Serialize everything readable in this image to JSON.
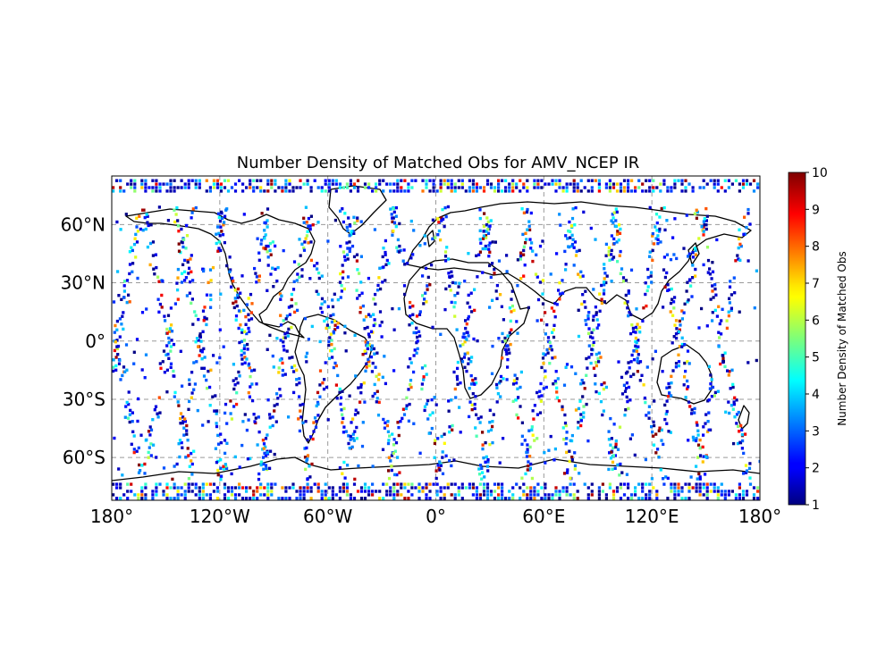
{
  "chart_data": {
    "type": "heatmap",
    "title": "Number Density of Matched Obs for AMV_NCEP IR",
    "projection": "PlateCarree",
    "xlim": [
      -180,
      180
    ],
    "ylim": [
      -82,
      85
    ],
    "x_ticks": [
      {
        "value": -180,
        "label": "180°"
      },
      {
        "value": -120,
        "label": "120°W"
      },
      {
        "value": -60,
        "label": "60°W"
      },
      {
        "value": 0,
        "label": "0°"
      },
      {
        "value": 60,
        "label": "60°E"
      },
      {
        "value": 120,
        "label": "120°E"
      },
      {
        "value": 180,
        "label": "180°"
      }
    ],
    "y_ticks": [
      {
        "value": 60,
        "label": "60°N"
      },
      {
        "value": 30,
        "label": "30°N"
      },
      {
        "value": 0,
        "label": "0°"
      },
      {
        "value": -30,
        "label": "30°S"
      },
      {
        "value": -60,
        "label": "60°S"
      }
    ],
    "grid": true,
    "coastlines": true,
    "colorbar": {
      "label": "Number Density of Matched Obs",
      "range": [
        1,
        10
      ],
      "ticks": [
        "1",
        "2",
        "3",
        "4",
        "5",
        "6",
        "7",
        "8",
        "9",
        "10"
      ],
      "colormap": "jet",
      "position": "right"
    },
    "orbit_swaths": {
      "description": "satellite swath tracks of matched observations",
      "swath_lons_deg": [
        -178,
        -150,
        -132,
        -108,
        -84,
        -60,
        -38,
        -12,
        14,
        38,
        62,
        86,
        110,
        134,
        158
      ]
    },
    "polar_bands_lat_deg": [
      [
        -82,
        -72
      ],
      [
        78,
        85
      ]
    ]
  }
}
